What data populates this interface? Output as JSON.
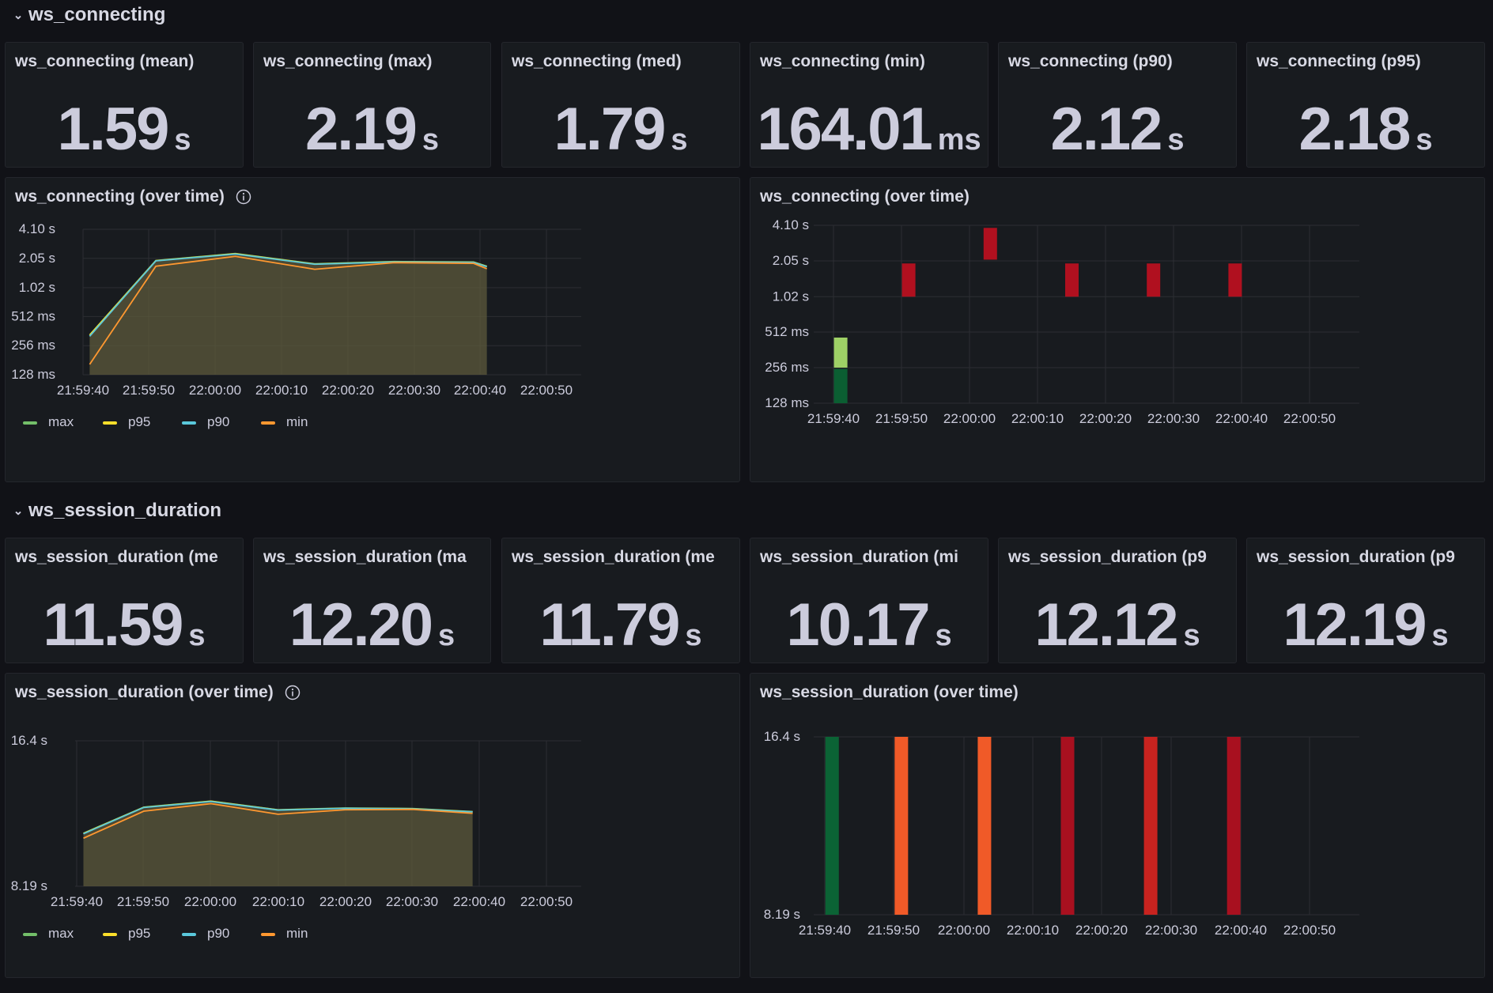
{
  "rows": [
    {
      "title": "ws_connecting",
      "stats": [
        {
          "title": "ws_connecting (mean)",
          "value": "1.59",
          "unit": "s"
        },
        {
          "title": "ws_connecting (max)",
          "value": "2.19",
          "unit": "s"
        },
        {
          "title": "ws_connecting (med)",
          "value": "1.79",
          "unit": "s"
        },
        {
          "title": "ws_connecting (min)",
          "value": "164.01",
          "unit": "ms"
        },
        {
          "title": "ws_connecting (p90)",
          "value": "2.12",
          "unit": "s"
        },
        {
          "title": "ws_connecting (p95)",
          "value": "2.18",
          "unit": "s"
        }
      ],
      "timeseries_title": "ws_connecting (over time)",
      "heatmap_title": "ws_connecting (over time)"
    },
    {
      "title": "ws_session_duration",
      "stats": [
        {
          "title": "ws_session_duration (me",
          "value": "11.59",
          "unit": "s"
        },
        {
          "title": "ws_session_duration (ma",
          "value": "12.20",
          "unit": "s"
        },
        {
          "title": "ws_session_duration (me",
          "value": "11.79",
          "unit": "s"
        },
        {
          "title": "ws_session_duration (mi",
          "value": "10.17",
          "unit": "s"
        },
        {
          "title": "ws_session_duration (p9",
          "value": "12.12",
          "unit": "s"
        },
        {
          "title": "ws_session_duration (p9",
          "value": "12.19",
          "unit": "s"
        }
      ],
      "timeseries_title": "ws_session_duration (over time)",
      "heatmap_title": "ws_session_duration (over time)"
    }
  ],
  "legend": [
    {
      "name": "max",
      "color": "#73bf69"
    },
    {
      "name": "p95",
      "color": "#fade2a"
    },
    {
      "name": "p90",
      "color": "#5ac8db"
    },
    {
      "name": "min",
      "color": "#ff9830"
    }
  ],
  "chart_data": [
    {
      "type": "area",
      "scale": "log2",
      "x_ticks": [
        "21:59:40",
        "21:59:50",
        "22:00:00",
        "22:00:10",
        "22:00:20",
        "22:00:30",
        "22:00:40",
        "22:00:50"
      ],
      "y_ticks": [
        {
          "label": "4.10 s",
          "v": 4.1
        },
        {
          "label": "2.05 s",
          "v": 2.05
        },
        {
          "label": "1.02 s",
          "v": 1.02
        },
        {
          "label": "512 ms",
          "v": 0.512
        },
        {
          "label": "256 ms",
          "v": 0.256
        },
        {
          "label": "128 ms",
          "v": 0.128
        }
      ],
      "ylim": [
        0.128,
        4.1
      ],
      "xlim": [
        0,
        75
      ],
      "x": [
        1,
        11,
        23,
        35,
        47,
        59,
        61
      ],
      "series": [
        {
          "name": "max",
          "values": [
            0.33,
            1.95,
            2.3,
            1.8,
            1.9,
            1.88,
            1.7
          ]
        },
        {
          "name": "p95",
          "values": [
            0.33,
            1.94,
            2.29,
            1.79,
            1.89,
            1.87,
            1.69
          ]
        },
        {
          "name": "p90",
          "values": [
            0.32,
            1.93,
            2.27,
            1.78,
            1.88,
            1.86,
            1.68
          ]
        },
        {
          "name": "min",
          "values": [
            0.164,
            1.7,
            2.15,
            1.58,
            1.85,
            1.82,
            1.6
          ]
        }
      ]
    },
    {
      "type": "heatmap",
      "scale": "log2",
      "x_ticks": [
        "21:59:40",
        "21:59:50",
        "22:00:00",
        "22:00:10",
        "22:00:20",
        "22:00:30",
        "22:00:40",
        "22:00:50"
      ],
      "y_ticks": [
        {
          "label": "4.10 s",
          "v": 4.1
        },
        {
          "label": "2.05 s",
          "v": 2.05
        },
        {
          "label": "1.02 s",
          "v": 1.02
        },
        {
          "label": "512 ms",
          "v": 0.512
        },
        {
          "label": "256 ms",
          "v": 0.256
        },
        {
          "label": "128 ms",
          "v": 0.128
        }
      ],
      "ylim": [
        0.128,
        4.1
      ],
      "xlim": [
        0,
        75
      ],
      "cells": [
        {
          "x": 1,
          "lo": 0.256,
          "hi": 0.46,
          "color": "#9ed166"
        },
        {
          "x": 1,
          "lo": 0.128,
          "hi": 0.25,
          "color": "#0b5e32"
        },
        {
          "x": 11,
          "lo": 1.02,
          "hi": 1.95,
          "color": "#b0101f"
        },
        {
          "x": 23,
          "lo": 2.1,
          "hi": 3.9,
          "color": "#b0101f"
        },
        {
          "x": 35,
          "lo": 1.02,
          "hi": 1.95,
          "color": "#b0101f"
        },
        {
          "x": 47,
          "lo": 1.02,
          "hi": 1.95,
          "color": "#b0101f"
        },
        {
          "x": 59,
          "lo": 1.02,
          "hi": 1.95,
          "color": "#b0101f"
        }
      ]
    },
    {
      "type": "area",
      "scale": "log2",
      "x_ticks": [
        "21:59:40",
        "21:59:50",
        "22:00:00",
        "22:00:10",
        "22:00:20",
        "22:00:30",
        "22:00:40",
        "22:00:50"
      ],
      "y_ticks": [
        {
          "label": "16.4 s",
          "v": 16.4
        },
        {
          "label": "8.19 s",
          "v": 8.19
        }
      ],
      "ylim": [
        8.19,
        16.4
      ],
      "xlim": [
        0,
        75
      ],
      "x": [
        1,
        10,
        20,
        30,
        40,
        50,
        59
      ],
      "series": [
        {
          "name": "max",
          "values": [
            10.55,
            11.95,
            12.3,
            11.8,
            11.9,
            11.87,
            11.7
          ]
        },
        {
          "name": "p95",
          "values": [
            10.54,
            11.94,
            12.29,
            11.79,
            11.89,
            11.86,
            11.69
          ]
        },
        {
          "name": "p90",
          "values": [
            10.52,
            11.93,
            12.27,
            11.78,
            11.88,
            11.85,
            11.68
          ]
        },
        {
          "name": "min",
          "values": [
            10.3,
            11.72,
            12.15,
            11.55,
            11.8,
            11.82,
            11.6
          ]
        }
      ]
    },
    {
      "type": "heatmap",
      "scale": "log2",
      "x_ticks": [
        "21:59:40",
        "21:59:50",
        "22:00:00",
        "22:00:10",
        "22:00:20",
        "22:00:30",
        "22:00:40",
        "22:00:50"
      ],
      "y_ticks": [
        {
          "label": "16.4 s",
          "v": 16.4
        },
        {
          "label": "8.19 s",
          "v": 8.19
        }
      ],
      "ylim": [
        8.19,
        16.4
      ],
      "xlim": [
        0,
        75
      ],
      "cells": [
        {
          "x": 1,
          "lo": 8.19,
          "hi": 16.4,
          "color": "#0b6335"
        },
        {
          "x": 11,
          "lo": 8.19,
          "hi": 16.4,
          "color": "#f05a28"
        },
        {
          "x": 23,
          "lo": 8.19,
          "hi": 16.4,
          "color": "#f05a28"
        },
        {
          "x": 35,
          "lo": 8.19,
          "hi": 16.4,
          "color": "#a8101f"
        },
        {
          "x": 47,
          "lo": 8.19,
          "hi": 16.4,
          "color": "#c8231f"
        },
        {
          "x": 59,
          "lo": 8.19,
          "hi": 16.4,
          "color": "#a8101f"
        }
      ]
    }
  ]
}
